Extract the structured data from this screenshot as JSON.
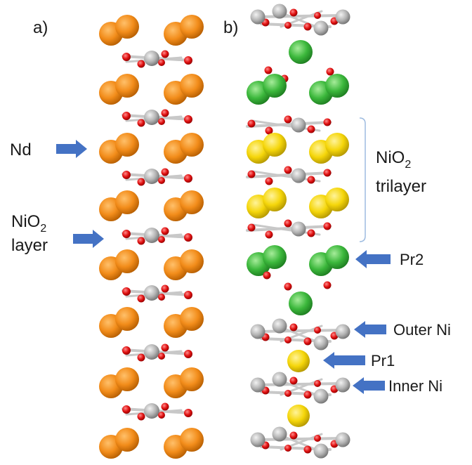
{
  "panels": {
    "a": {
      "label": "a)"
    },
    "b": {
      "label": "b)"
    }
  },
  "labels": {
    "nd": "Nd",
    "nio2_layer_line1": "NiO",
    "nio2_layer_sub": "2",
    "nio2_layer_line2": "layer",
    "trilayer_line1": "NiO",
    "trilayer_sub": "2",
    "trilayer_line2": "trilayer",
    "pr2": "Pr2",
    "outer_ni": "Outer Ni",
    "pr1": "Pr1",
    "inner_ni": "Inner Ni"
  },
  "colors": {
    "nd_atom": "#f28c1a",
    "pr2_atom": "#3cb83c",
    "pr1_atom": "#f5d60a",
    "ni_atom": "#b4b4b4",
    "o_atom": "#e01010",
    "arrow": "#4472c4",
    "bracket": "#9dbbe0"
  }
}
